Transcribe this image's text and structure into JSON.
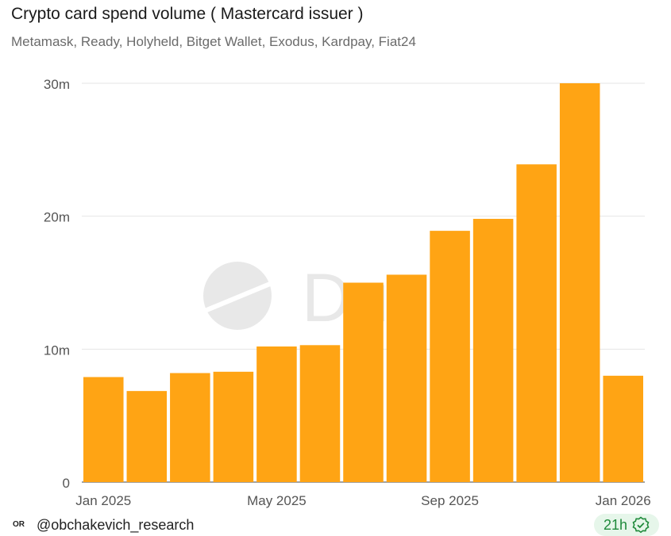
{
  "title": "Crypto card spend volume ( Mastercard issuer )",
  "subtitle": "Metamask, Ready, Holyheld, Bitget Wallet, Exodus, Kardpay, Fiat24",
  "watermark": "Dune",
  "footer": {
    "logo": "OR",
    "user": "@obchakevich_research",
    "age": "21h"
  },
  "colors": {
    "bar": "#FFA414",
    "grid": "#e5e5e5"
  },
  "chart_data": {
    "type": "bar",
    "categories": [
      "2025-01",
      "2025-02",
      "2025-03",
      "2025-04",
      "2025-05",
      "2025-06",
      "2025-07",
      "2025-08",
      "2025-09",
      "2025-10",
      "2025-11",
      "2025-12",
      "2026-01"
    ],
    "values": [
      7.9,
      6.85,
      8.2,
      8.3,
      10.2,
      10.3,
      15.0,
      15.6,
      18.9,
      19.8,
      23.9,
      30.0,
      8.0
    ],
    "value_unit": "millions",
    "ylim": [
      0,
      30
    ],
    "y_ticks": [
      {
        "v": 0,
        "label": "0"
      },
      {
        "v": 10,
        "label": "10m"
      },
      {
        "v": 20,
        "label": "20m"
      },
      {
        "v": 30,
        "label": "30m"
      }
    ],
    "x_ticks": [
      {
        "i": 0,
        "label": "Jan 2025"
      },
      {
        "i": 4,
        "label": "May 2025"
      },
      {
        "i": 8,
        "label": "Sep 2025"
      },
      {
        "i": 12,
        "label": "Jan 2026"
      }
    ],
    "grid": true,
    "xlabel": "",
    "ylabel": ""
  }
}
